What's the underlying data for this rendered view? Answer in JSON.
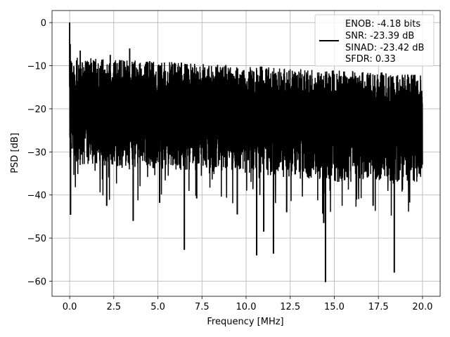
{
  "chart_data": {
    "type": "line",
    "xlabel": "Frequency [MHz]",
    "ylabel": "PSD [dB]",
    "xlim": [
      -1.0,
      21.0
    ],
    "ylim": [
      -63.5,
      2.8
    ],
    "xticks": [
      0.0,
      2.5,
      5.0,
      7.5,
      10.0,
      12.5,
      15.0,
      17.5,
      20.0
    ],
    "xtick_labels": [
      "0.0",
      "2.5",
      "5.0",
      "7.5",
      "10.0",
      "12.5",
      "15.0",
      "17.5",
      "20.0"
    ],
    "yticks": [
      0,
      -10,
      -20,
      -30,
      -40,
      -50,
      -60
    ],
    "ytick_labels": [
      "0",
      "−10",
      "−20",
      "−30",
      "−40",
      "−50",
      "−60"
    ],
    "grid": true,
    "legend_position": "top-right",
    "legend": {
      "lines": [
        "ENOB: -4.18 bits",
        "SNR: -23.39 dB",
        "SINAD: -23.42 dB",
        "SFDR: 0.33"
      ]
    },
    "series": [
      {
        "color": "#000000",
        "x_range": [
          0.0,
          20.0
        ],
        "level_points": [
          {
            "x": 0.0,
            "y": -20
          },
          {
            "x": 5.0,
            "y": -20
          },
          {
            "x": 10.0,
            "y": -21
          },
          {
            "x": 15.0,
            "y": -22
          },
          {
            "x": 20.0,
            "y": -22
          }
        ],
        "upper_envelope": [
          -8,
          -9,
          -10,
          -11,
          -12
        ],
        "lower_envelope": [
          -33,
          -34,
          -35,
          -37,
          -37
        ],
        "peaks": [
          {
            "x": 0.0,
            "y": 0.0
          },
          {
            "x": 0.03,
            "y": -5
          },
          {
            "x": 0.6,
            "y": -6.5
          },
          {
            "x": 2.3,
            "y": -7.5
          },
          {
            "x": 3.4,
            "y": -6
          }
        ],
        "dips": [
          {
            "x": 0.05,
            "y": -44.6
          },
          {
            "x": 2.1,
            "y": -42.5
          },
          {
            "x": 3.6,
            "y": -46
          },
          {
            "x": 6.5,
            "y": -52.7
          },
          {
            "x": 10.6,
            "y": -54
          },
          {
            "x": 11.55,
            "y": -53.6
          },
          {
            "x": 14.5,
            "y": -60.2
          },
          {
            "x": 18.4,
            "y": -58
          },
          {
            "x": 9.5,
            "y": -44.5
          },
          {
            "x": 12.3,
            "y": -44
          },
          {
            "x": 14.4,
            "y": -46.5
          },
          {
            "x": 17.2,
            "y": -42.5
          },
          {
            "x": 5.1,
            "y": -41.8
          },
          {
            "x": 7.2,
            "y": -40.8
          },
          {
            "x": 11.0,
            "y": -48.5
          }
        ]
      }
    ]
  }
}
